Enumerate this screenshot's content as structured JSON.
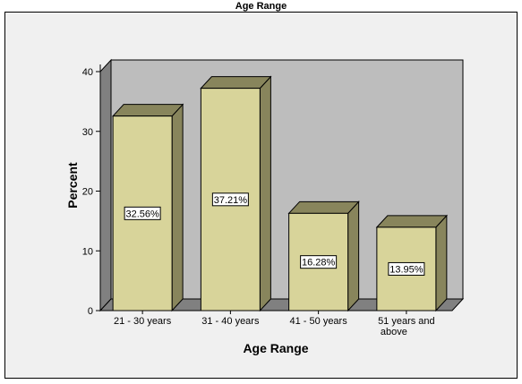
{
  "chart_data": {
    "type": "bar",
    "title": "Age Range",
    "xlabel": "Age Range",
    "ylabel": "Percent",
    "categories": [
      "21 - 30 years",
      "31 - 40 years",
      "41 - 50 years",
      "51 years and above"
    ],
    "values": [
      32.56,
      37.21,
      16.28,
      13.95
    ],
    "data_labels": [
      "32.56%",
      "37.21%",
      "16.28%",
      "13.95%"
    ],
    "ylim": [
      0,
      40
    ],
    "yticks": [
      0,
      10,
      20,
      30,
      40
    ],
    "style": "3d",
    "grid": false,
    "colors": {
      "bar_front": "#d8d49a",
      "bar_top": "#88855c",
      "bar_side": "#88855c",
      "wall": "#bdbdbd",
      "left_wall": "#808080",
      "floor": "#808080",
      "frame_background": "#f0f0f0"
    }
  }
}
